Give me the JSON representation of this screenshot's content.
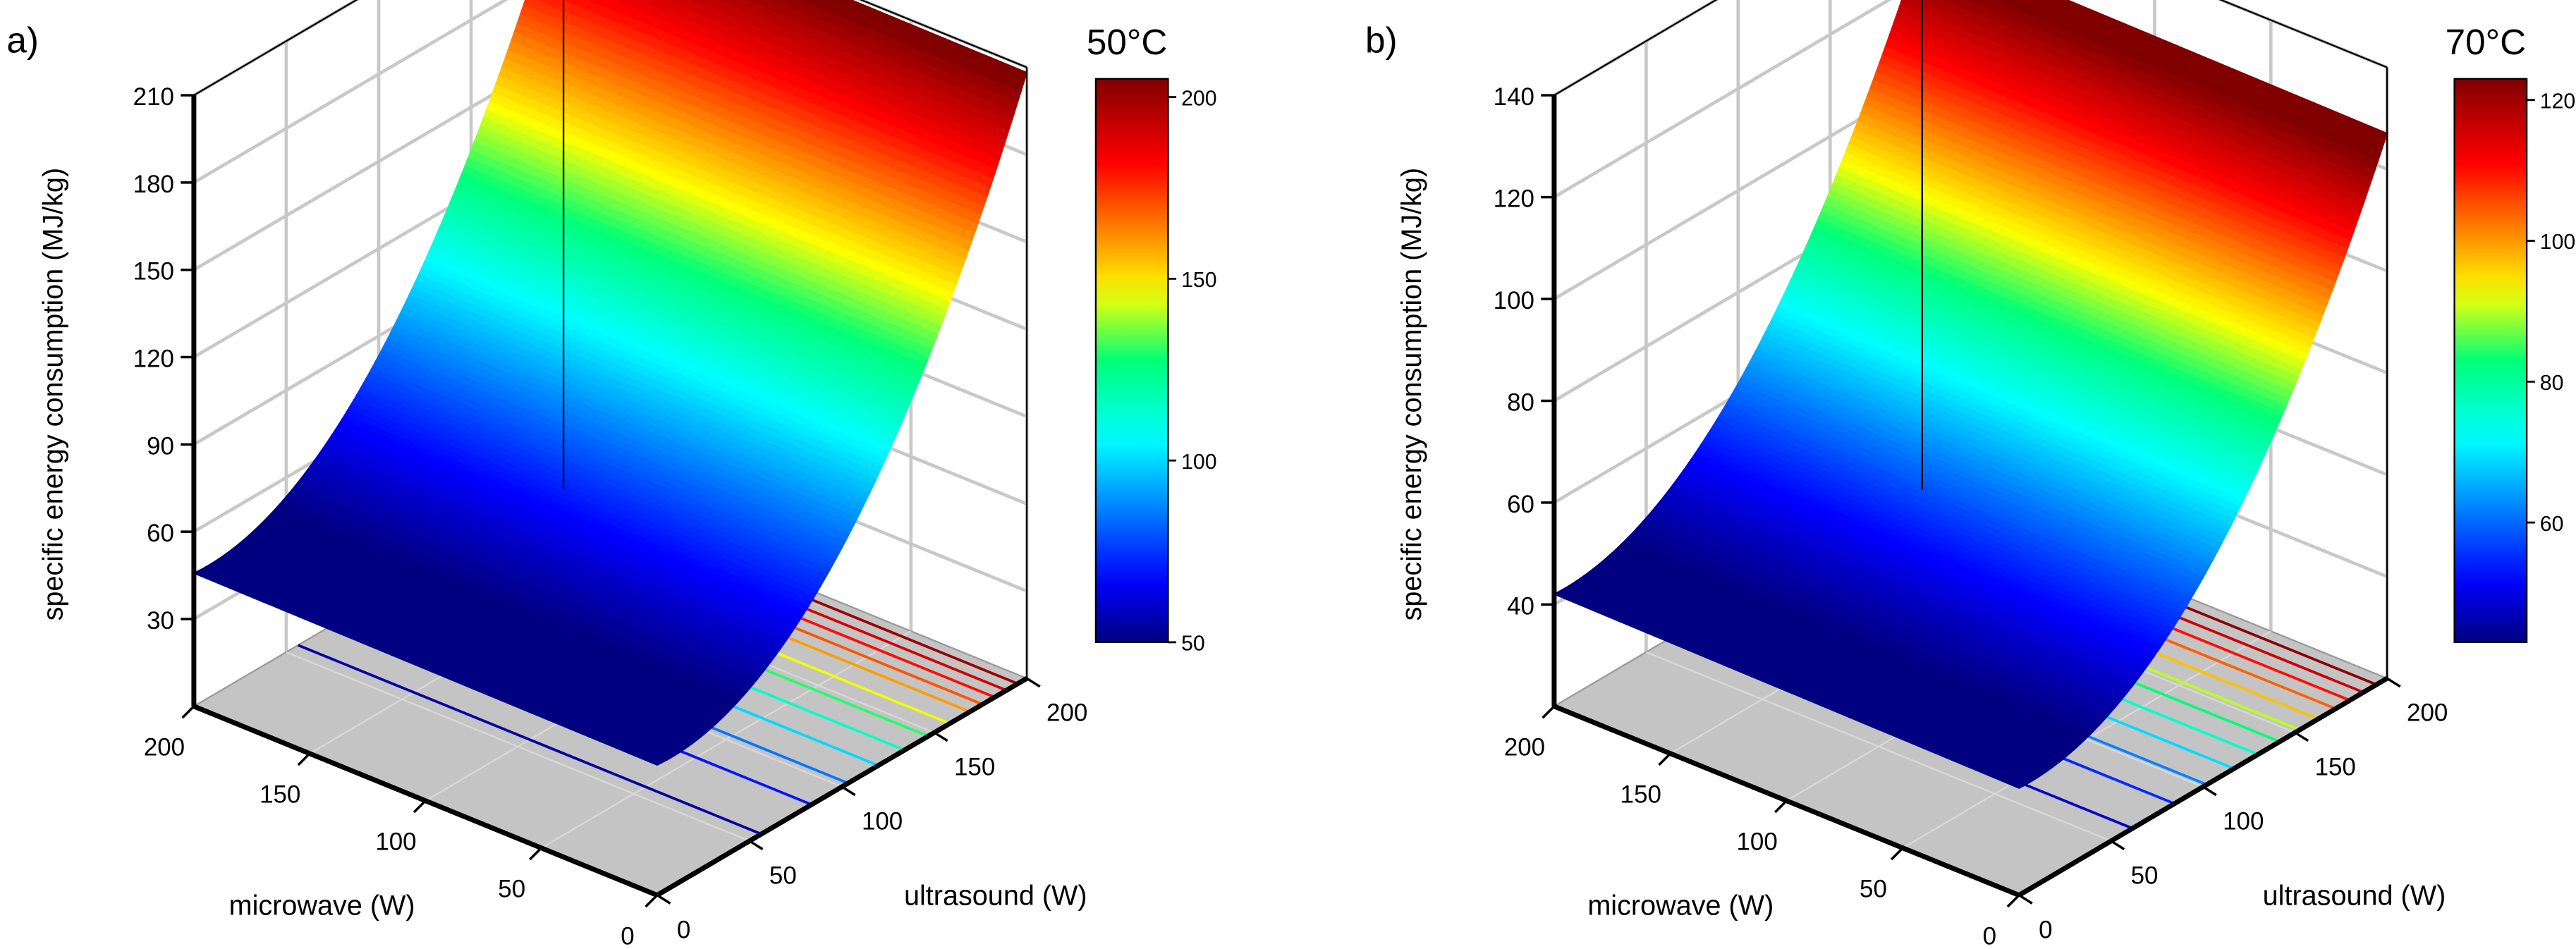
{
  "chart_data": [
    {
      "type": "surface3d",
      "panel_label": "a)",
      "title": "50°C",
      "zlabel": "specific energy consumption (MJ/kg)",
      "xlabel": "microwave (W)",
      "ylabel": "ultrasound (W)",
      "zlim": [
        0,
        210
      ],
      "zticks": [
        30,
        60,
        90,
        120,
        150,
        180,
        210
      ],
      "microwave_ticks": [
        0,
        50,
        100,
        150,
        200
      ],
      "ultrasound_ticks": [
        0,
        50,
        100,
        150,
        200
      ],
      "microwave_range": [
        0,
        200
      ],
      "ultrasound_range": [
        0,
        200
      ],
      "colorbar": {
        "range": [
          50,
          205
        ],
        "ticks": [
          50,
          100,
          150,
          200
        ]
      },
      "surface": {
        "description": "quadratic in ultrasound, nearly constant in microwave",
        "ultrasound": [
          0,
          25,
          50,
          75,
          100,
          125,
          150,
          175,
          200
        ],
        "value": [
          48,
          44,
          50,
          62,
          82,
          108,
          137,
          170,
          205
        ]
      },
      "contour_levels": [
        55,
        70,
        85,
        100,
        115,
        130,
        145,
        160,
        170,
        180,
        190,
        200
      ]
    },
    {
      "type": "surface3d",
      "panel_label": "b)",
      "title": "70°C",
      "zlabel": "specific energy consumption (MJ/kg)",
      "xlabel": "microwave (W)",
      "ylabel": "ultrasound (W)",
      "zlim": [
        20,
        140
      ],
      "zticks": [
        40,
        60,
        80,
        100,
        120,
        140
      ],
      "microwave_ticks": [
        0,
        50,
        100,
        150,
        200
      ],
      "ultrasound_ticks": [
        0,
        50,
        100,
        150,
        200
      ],
      "microwave_range": [
        0,
        200
      ],
      "ultrasound_range": [
        0,
        200
      ],
      "colorbar": {
        "range": [
          43,
          123
        ],
        "ticks": [
          60,
          80,
          100,
          120
        ]
      },
      "surface": {
        "description": "quadratic in ultrasound, nearly constant in microwave",
        "ultrasound": [
          0,
          25,
          50,
          75,
          100,
          125,
          150,
          175,
          200
        ],
        "value": [
          44,
          40,
          43,
          50,
          61,
          75,
          91,
          108,
          124
        ]
      },
      "contour_levels": [
        48,
        55,
        62,
        69,
        76,
        83,
        90,
        97,
        104,
        110,
        116,
        122
      ]
    }
  ]
}
